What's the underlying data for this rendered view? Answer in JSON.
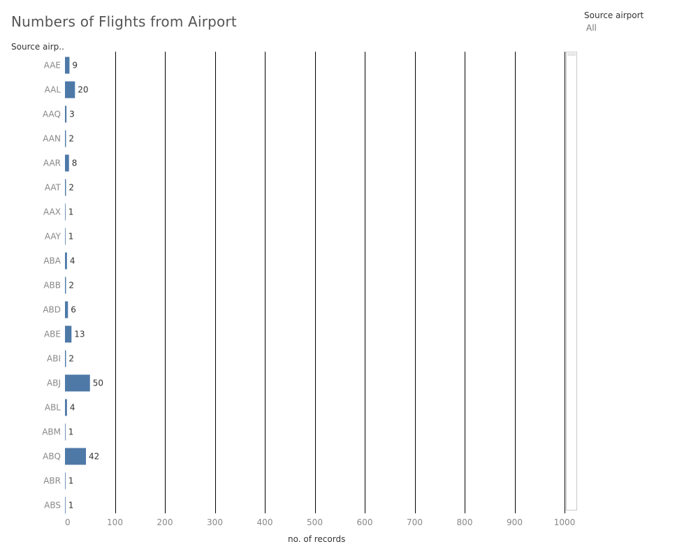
{
  "title": "Numbers of Flights from Airport",
  "row_header": "Source airp..",
  "filter": {
    "title": "Source airport",
    "value": "All"
  },
  "colors": {
    "bar": "#4e79a7",
    "gridline": "#000000"
  },
  "chart_data": {
    "type": "bar",
    "orientation": "horizontal",
    "title": "Numbers of Flights from Airport",
    "xlabel": "no. of records",
    "ylabel": "Source airp..",
    "xlim": [
      0,
      1000
    ],
    "xticks": [
      0,
      100,
      200,
      300,
      400,
      500,
      600,
      700,
      800,
      900,
      1000
    ],
    "grid": true,
    "categories": [
      "AAE",
      "AAL",
      "AAQ",
      "AAN",
      "AAR",
      "AAT",
      "AAX",
      "AAY",
      "ABA",
      "ABB",
      "ABD",
      "ABE",
      "ABI",
      "ABJ",
      "ABL",
      "ABM",
      "ABQ",
      "ABR",
      "ABS"
    ],
    "values": [
      9,
      20,
      3,
      2,
      8,
      2,
      1,
      1,
      4,
      2,
      6,
      13,
      2,
      50,
      4,
      1,
      42,
      1,
      1
    ]
  }
}
